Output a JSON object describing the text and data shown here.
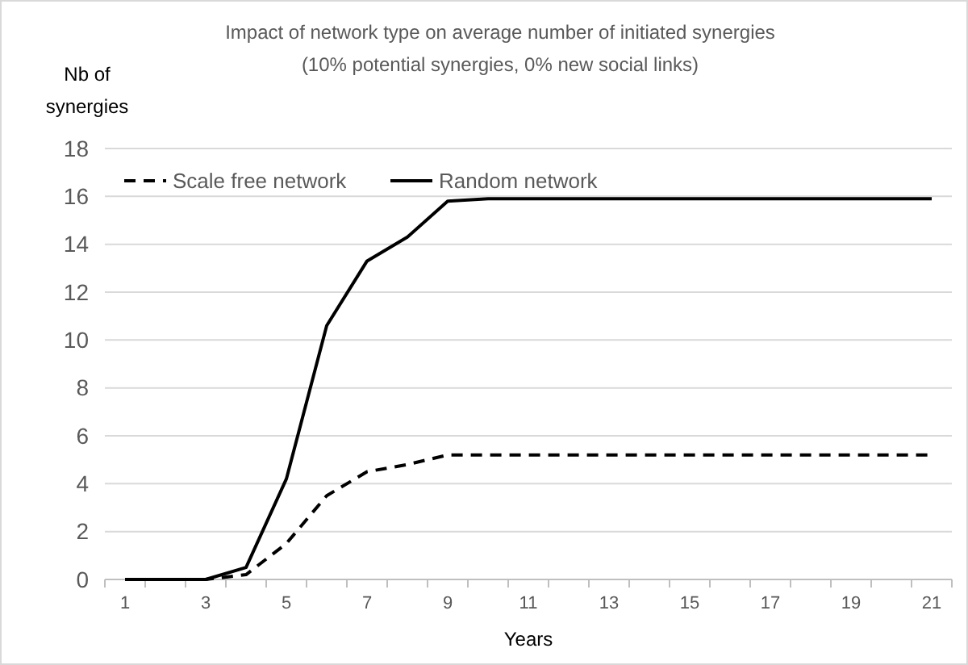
{
  "chart_data": {
    "type": "line",
    "title": "Impact of network type on average number of initiated synergies",
    "subtitle": "(10% potential synergies, 0% new social links)",
    "xlabel": "Years",
    "ylabel": "Nb of synergies",
    "x": [
      1,
      2,
      3,
      4,
      5,
      6,
      7,
      8,
      9,
      10,
      11,
      12,
      13,
      14,
      15,
      16,
      17,
      18,
      19,
      20,
      21
    ],
    "xlim": [
      0.5,
      21.5
    ],
    "xticks": [
      1,
      3,
      5,
      7,
      9,
      11,
      13,
      15,
      17,
      19,
      21,
      {
        "value": 0.5,
        "label": null
      },
      {
        "value": 1.5,
        "label": null
      },
      {
        "value": 2.5,
        "label": null
      },
      {
        "value": 3.5,
        "label": null
      },
      {
        "value": 4.5,
        "label": null
      },
      {
        "value": 5.5,
        "label": null
      },
      {
        "value": 6.5,
        "label": null
      },
      {
        "value": 7.5,
        "label": null
      },
      {
        "value": 8.5,
        "label": null
      },
      {
        "value": 9.5,
        "label": null
      },
      {
        "value": 10.5,
        "label": null
      },
      {
        "value": 11.5,
        "label": null
      },
      {
        "value": 12.5,
        "label": null
      },
      {
        "value": 13.5,
        "label": null
      },
      {
        "value": 14.5,
        "label": null
      },
      {
        "value": 15.5,
        "label": null
      },
      {
        "value": 16.5,
        "label": null
      },
      {
        "value": 17.5,
        "label": null
      },
      {
        "value": 18.5,
        "label": null
      },
      {
        "value": 19.5,
        "label": null
      },
      {
        "value": 20.5,
        "label": null
      },
      {
        "value": 21.5,
        "label": null
      }
    ],
    "series": [
      {
        "name": "Scale free network",
        "color": "#000000",
        "line_style": "dashed",
        "values": [
          0,
          0,
          0,
          0.2,
          1.5,
          3.5,
          4.5,
          4.8,
          5.2,
          5.2,
          5.2,
          5.2,
          5.2,
          5.2,
          5.2,
          5.2,
          5.2,
          5.2,
          5.2,
          5.2,
          5.2
        ]
      },
      {
        "name": "Random network",
        "color": "#000000",
        "line_style": "solid",
        "values": [
          0,
          0,
          0,
          0.5,
          4.2,
          10.6,
          13.3,
          14.3,
          15.8,
          15.9,
          15.9,
          15.9,
          15.9,
          15.9,
          15.9,
          15.9,
          15.9,
          15.9,
          15.9,
          15.9,
          15.9
        ]
      }
    ],
    "ylim": [
      0,
      18
    ],
    "yticks": [
      0,
      2,
      4,
      6,
      8,
      10,
      12,
      14,
      16,
      18
    ],
    "grid": "y",
    "legend": "top left",
    "marker": "none"
  }
}
